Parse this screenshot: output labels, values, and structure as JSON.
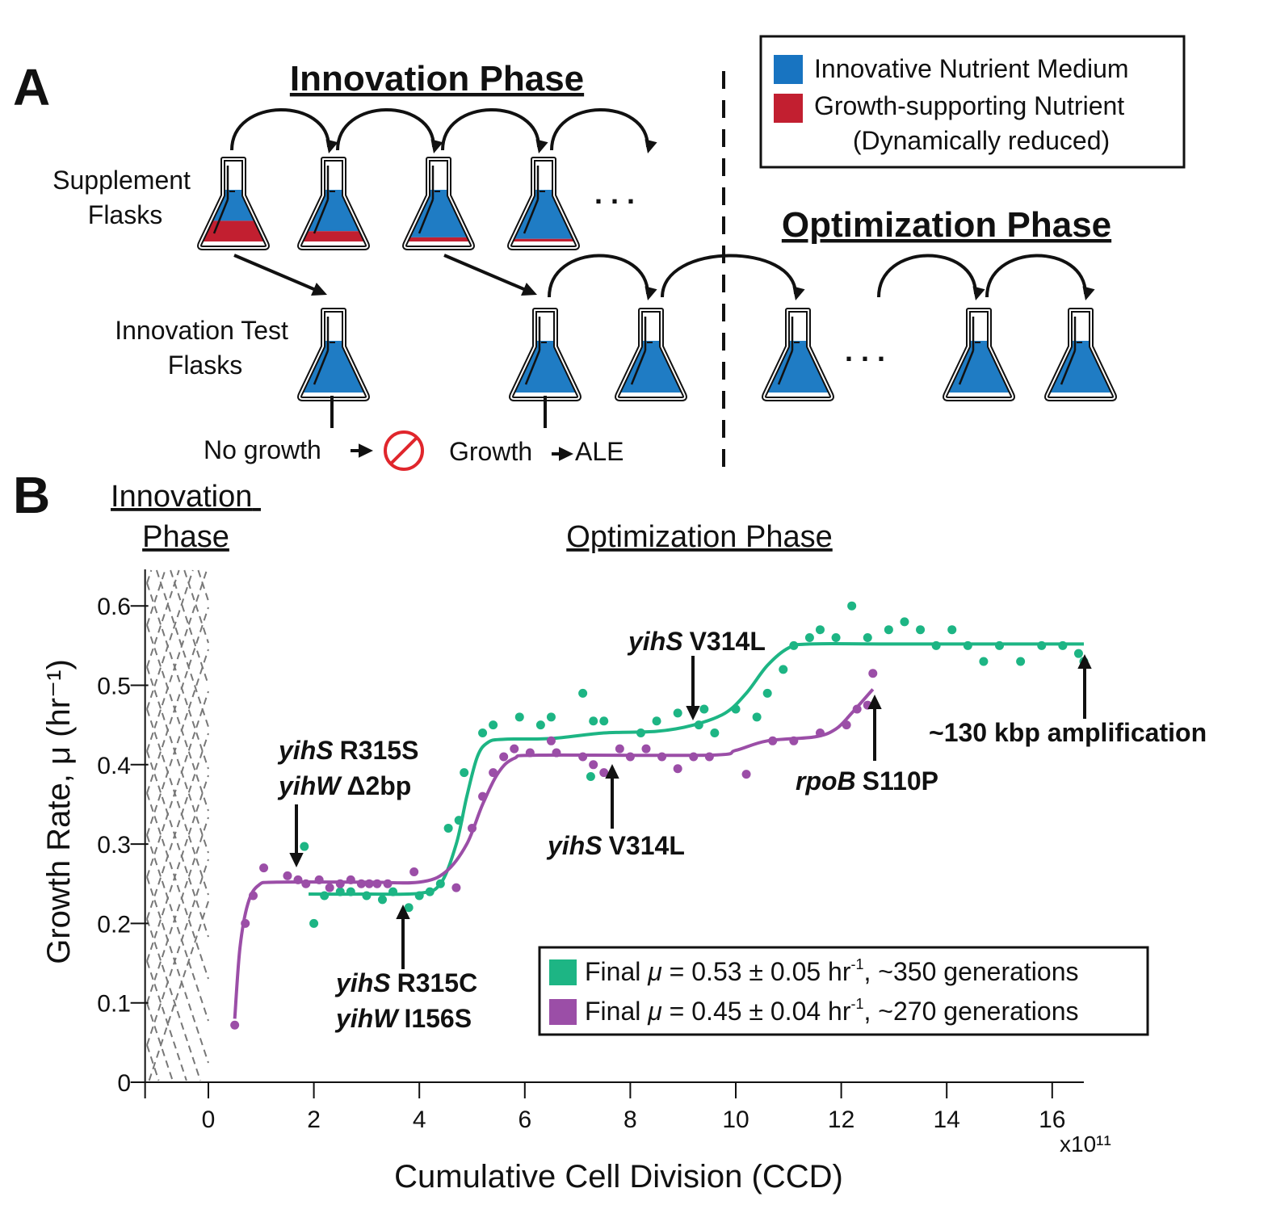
{
  "panel_a": {
    "label": "A",
    "innovation_title": "Innovation Phase",
    "optimization_title": "Optimization Phase",
    "supplement_label": [
      "Supplement",
      "Flasks"
    ],
    "test_label": [
      "Innovation Test",
      "Flasks"
    ],
    "ellipsis": ". . .",
    "no_growth": "No growth",
    "growth": "Growth",
    "ale": "ALE",
    "supplement_red_fractions": [
      0.4,
      0.2,
      0.08,
      0.05
    ],
    "legend": {
      "items": [
        {
          "label": "Innovative Nutrient Medium",
          "color": "#1874c1"
        },
        {
          "label": "Growth-supporting Nutrient",
          "color": "#c21f30"
        }
      ],
      "note": "(Dynamically reduced)"
    }
  },
  "panel_b": {
    "label": "B",
    "phase_left": [
      "Innovation",
      "Phase"
    ],
    "phase_right": "Optimization Phase",
    "annotations": [
      {
        "gene": "yihS",
        "mut": "R315S"
      },
      {
        "gene": "yihW",
        "mut": "Δ2bp"
      },
      {
        "gene": "yihS",
        "mut": "R315C"
      },
      {
        "gene": "yihW",
        "mut": "I156S"
      },
      {
        "gene": "yihS",
        "mut": "V314L"
      },
      {
        "gene": "yihS",
        "mut": "V314L"
      },
      {
        "gene": "rpoB",
        "mut": "S110P"
      },
      {
        "gene": "",
        "mut": "~130 kbp amplification"
      }
    ]
  },
  "chart_data": {
    "type": "scatter",
    "xlabel": "Cumulative Cell Division (CCD)",
    "x_multiplier": "x10¹¹",
    "ylabel": "Growth Rate, μ (hr⁻¹)",
    "xlim": [
      -1.2,
      16.6
    ],
    "ylim": [
      0,
      0.65
    ],
    "xticks": [
      "0",
      "2",
      "4",
      "6",
      "8",
      "10",
      "12",
      "14",
      "16"
    ],
    "yticks": [
      "0",
      "0.1",
      "0.2",
      "0.3",
      "0.4",
      "0.5",
      "0.6"
    ],
    "grid": false,
    "legend_placement": "bottom-right",
    "series": [
      {
        "name": "Final μ = 0.53 ± 0.05 hr⁻¹, ~350 generations",
        "legend": {
          "pre": "Final ",
          "mu": "μ",
          "mid": " = 0.53 ± 0.05 hr",
          "sup": "-1",
          "post": ", ~350 generations"
        },
        "color": "#1db584",
        "points": [
          [
            1.82,
            0.297
          ],
          [
            2.0,
            0.2
          ],
          [
            2.2,
            0.235
          ],
          [
            2.5,
            0.24
          ],
          [
            2.7,
            0.24
          ],
          [
            3.0,
            0.235
          ],
          [
            3.3,
            0.23
          ],
          [
            3.5,
            0.24
          ],
          [
            3.8,
            0.22
          ],
          [
            4.0,
            0.235
          ],
          [
            4.2,
            0.24
          ],
          [
            4.4,
            0.25
          ],
          [
            4.55,
            0.32
          ],
          [
            4.75,
            0.33
          ],
          [
            4.85,
            0.39
          ],
          [
            5.2,
            0.44
          ],
          [
            5.4,
            0.45
          ],
          [
            5.9,
            0.46
          ],
          [
            6.3,
            0.45
          ],
          [
            6.5,
            0.46
          ],
          [
            7.1,
            0.49
          ],
          [
            7.3,
            0.455
          ],
          [
            7.5,
            0.455
          ],
          [
            7.25,
            0.385
          ],
          [
            8.2,
            0.44
          ],
          [
            8.5,
            0.455
          ],
          [
            8.9,
            0.465
          ],
          [
            9.3,
            0.45
          ],
          [
            9.4,
            0.47
          ],
          [
            9.6,
            0.44
          ],
          [
            10.0,
            0.47
          ],
          [
            10.4,
            0.46
          ],
          [
            10.6,
            0.49
          ],
          [
            10.9,
            0.52
          ],
          [
            11.1,
            0.55
          ],
          [
            11.4,
            0.56
          ],
          [
            11.6,
            0.57
          ],
          [
            11.9,
            0.56
          ],
          [
            12.2,
            0.6
          ],
          [
            12.5,
            0.56
          ],
          [
            12.9,
            0.57
          ],
          [
            13.2,
            0.58
          ],
          [
            13.5,
            0.57
          ],
          [
            13.8,
            0.55
          ],
          [
            14.1,
            0.57
          ],
          [
            14.4,
            0.55
          ],
          [
            14.7,
            0.53
          ],
          [
            15.0,
            0.55
          ],
          [
            15.4,
            0.53
          ],
          [
            15.8,
            0.55
          ],
          [
            16.2,
            0.55
          ],
          [
            16.5,
            0.54
          ],
          [
            16.6,
            0.53
          ]
        ],
        "fit": [
          [
            1.9,
            0.237
          ],
          [
            3.0,
            0.237
          ],
          [
            4.0,
            0.238
          ],
          [
            4.4,
            0.25
          ],
          [
            4.7,
            0.3
          ],
          [
            4.9,
            0.36
          ],
          [
            5.1,
            0.41
          ],
          [
            5.3,
            0.428
          ],
          [
            5.6,
            0.432
          ],
          [
            6.5,
            0.433
          ],
          [
            7.5,
            0.44
          ],
          [
            8.5,
            0.442
          ],
          [
            9.2,
            0.45
          ],
          [
            9.8,
            0.465
          ],
          [
            10.2,
            0.49
          ],
          [
            10.6,
            0.525
          ],
          [
            11.0,
            0.547
          ],
          [
            11.4,
            0.552
          ],
          [
            13,
            0.552
          ],
          [
            16.6,
            0.552
          ]
        ]
      },
      {
        "name": "Final μ = 0.45 ± 0.04 hr⁻¹, ~270 generations",
        "legend": {
          "pre": "Final ",
          "mu": "μ",
          "mid": " = 0.45 ± 0.04 hr",
          "sup": "-1",
          "post": ", ~270 generations"
        },
        "color": "#9b4ea7",
        "points": [
          [
            0.5,
            0.072
          ],
          [
            0.7,
            0.2
          ],
          [
            0.85,
            0.235
          ],
          [
            1.05,
            0.27
          ],
          [
            1.5,
            0.26
          ],
          [
            1.7,
            0.255
          ],
          [
            1.85,
            0.25
          ],
          [
            2.1,
            0.255
          ],
          [
            2.3,
            0.245
          ],
          [
            2.5,
            0.25
          ],
          [
            2.7,
            0.255
          ],
          [
            2.9,
            0.25
          ],
          [
            3.05,
            0.25
          ],
          [
            3.2,
            0.25
          ],
          [
            3.4,
            0.25
          ],
          [
            3.9,
            0.265
          ],
          [
            4.7,
            0.245
          ],
          [
            5.0,
            0.32
          ],
          [
            5.2,
            0.36
          ],
          [
            5.4,
            0.39
          ],
          [
            5.6,
            0.41
          ],
          [
            5.8,
            0.42
          ],
          [
            6.1,
            0.415
          ],
          [
            6.5,
            0.43
          ],
          [
            6.6,
            0.415
          ],
          [
            7.1,
            0.41
          ],
          [
            7.3,
            0.4
          ],
          [
            7.5,
            0.39
          ],
          [
            7.8,
            0.42
          ],
          [
            8.0,
            0.41
          ],
          [
            8.3,
            0.42
          ],
          [
            8.6,
            0.41
          ],
          [
            8.9,
            0.395
          ],
          [
            9.2,
            0.41
          ],
          [
            9.5,
            0.41
          ],
          [
            10.2,
            0.388
          ],
          [
            10.7,
            0.43
          ],
          [
            11.1,
            0.43
          ],
          [
            11.6,
            0.44
          ],
          [
            12.1,
            0.45
          ],
          [
            12.3,
            0.47
          ],
          [
            12.5,
            0.475
          ],
          [
            12.6,
            0.515
          ]
        ],
        "fit": [
          [
            0.5,
            0.08
          ],
          [
            0.6,
            0.17
          ],
          [
            0.75,
            0.225
          ],
          [
            0.95,
            0.248
          ],
          [
            1.3,
            0.252
          ],
          [
            3.0,
            0.252
          ],
          [
            4.0,
            0.252
          ],
          [
            4.5,
            0.265
          ],
          [
            4.9,
            0.3
          ],
          [
            5.2,
            0.35
          ],
          [
            5.5,
            0.39
          ],
          [
            5.8,
            0.408
          ],
          [
            6.3,
            0.412
          ],
          [
            9.5,
            0.412
          ],
          [
            10.0,
            0.418
          ],
          [
            10.6,
            0.43
          ],
          [
            11.5,
            0.435
          ],
          [
            11.9,
            0.445
          ],
          [
            12.2,
            0.465
          ],
          [
            12.6,
            0.495
          ]
        ]
      }
    ]
  }
}
